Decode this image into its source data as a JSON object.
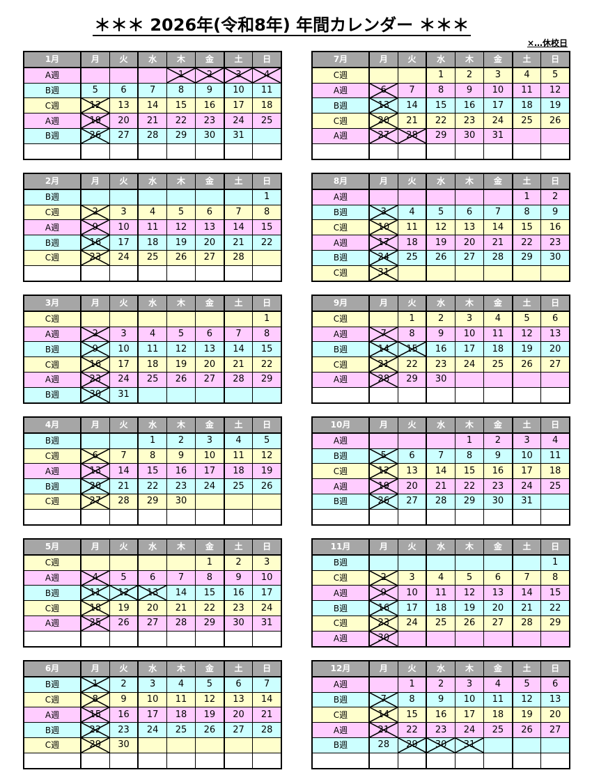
{
  "title": "＊＊＊ 2026年(令和8年) 年間カレンダー ＊＊＊",
  "legend_note": "×…休校日",
  "weekdays": [
    "月",
    "火",
    "水",
    "木",
    "金",
    "土",
    "日"
  ],
  "colors": {
    "A週": "#ffccff",
    "B週": "#ccffff",
    "C週": "#ffffcc",
    "header": "#a6a6a6"
  },
  "months": [
    {
      "label": "1月",
      "rows": [
        {
          "week": "A週",
          "days": [
            "",
            "",
            "",
            "1",
            "2",
            "3",
            "4"
          ]
        },
        {
          "week": "B週",
          "days": [
            "5",
            "6",
            "7",
            "8",
            "9",
            "10",
            "11"
          ]
        },
        {
          "week": "C週",
          "days": [
            "12",
            "13",
            "14",
            "15",
            "16",
            "17",
            "18"
          ]
        },
        {
          "week": "A週",
          "days": [
            "19",
            "20",
            "21",
            "22",
            "23",
            "24",
            "25"
          ]
        },
        {
          "week": "B週",
          "days": [
            "26",
            "27",
            "28",
            "29",
            "30",
            "31",
            ""
          ]
        },
        {
          "week": "",
          "days": [
            "",
            "",
            "",
            "",
            "",
            "",
            ""
          ]
        }
      ],
      "off": [
        "1",
        "2",
        "3",
        "4",
        "12",
        "19",
        "26"
      ]
    },
    {
      "label": "7月",
      "rows": [
        {
          "week": "C週",
          "days": [
            "",
            "",
            "1",
            "2",
            "3",
            "4",
            "5"
          ]
        },
        {
          "week": "A週",
          "days": [
            "6",
            "7",
            "8",
            "9",
            "10",
            "11",
            "12"
          ]
        },
        {
          "week": "B週",
          "days": [
            "13",
            "14",
            "15",
            "16",
            "17",
            "18",
            "19"
          ]
        },
        {
          "week": "C週",
          "days": [
            "20",
            "21",
            "22",
            "23",
            "24",
            "25",
            "26"
          ]
        },
        {
          "week": "A週",
          "days": [
            "27",
            "28",
            "29",
            "30",
            "31",
            "",
            ""
          ]
        },
        {
          "week": "",
          "days": [
            "",
            "",
            "",
            "",
            "",
            "",
            ""
          ]
        }
      ],
      "off": [
        "6",
        "13",
        "20",
        "27",
        "28"
      ]
    },
    {
      "label": "2月",
      "rows": [
        {
          "week": "B週",
          "days": [
            "",
            "",
            "",
            "",
            "",
            "",
            "1"
          ]
        },
        {
          "week": "C週",
          "days": [
            "2",
            "3",
            "4",
            "5",
            "6",
            "7",
            "8"
          ]
        },
        {
          "week": "A週",
          "days": [
            "9",
            "10",
            "11",
            "12",
            "13",
            "14",
            "15"
          ]
        },
        {
          "week": "B週",
          "days": [
            "16",
            "17",
            "18",
            "19",
            "20",
            "21",
            "22"
          ]
        },
        {
          "week": "C週",
          "days": [
            "23",
            "24",
            "25",
            "26",
            "27",
            "28",
            ""
          ]
        },
        {
          "week": "",
          "days": [
            "",
            "",
            "",
            "",
            "",
            "",
            ""
          ]
        }
      ],
      "off": [
        "2",
        "9",
        "16",
        "23"
      ]
    },
    {
      "label": "8月",
      "rows": [
        {
          "week": "A週",
          "days": [
            "",
            "",
            "",
            "",
            "",
            "1",
            "2"
          ]
        },
        {
          "week": "B週",
          "days": [
            "3",
            "4",
            "5",
            "6",
            "7",
            "8",
            "9"
          ]
        },
        {
          "week": "C週",
          "days": [
            "10",
            "11",
            "12",
            "13",
            "14",
            "15",
            "16"
          ]
        },
        {
          "week": "A週",
          "days": [
            "17",
            "18",
            "19",
            "20",
            "21",
            "22",
            "23"
          ]
        },
        {
          "week": "B週",
          "days": [
            "24",
            "25",
            "26",
            "27",
            "28",
            "29",
            "30"
          ]
        },
        {
          "week": "C週",
          "days": [
            "31",
            "",
            "",
            "",
            "",
            "",
            ""
          ]
        }
      ],
      "off": [
        "3",
        "10",
        "17",
        "24",
        "31"
      ]
    },
    {
      "label": "3月",
      "rows": [
        {
          "week": "C週",
          "days": [
            "",
            "",
            "",
            "",
            "",
            "",
            "1"
          ]
        },
        {
          "week": "A週",
          "days": [
            "2",
            "3",
            "4",
            "5",
            "6",
            "7",
            "8"
          ]
        },
        {
          "week": "B週",
          "days": [
            "9",
            "10",
            "11",
            "12",
            "13",
            "14",
            "15"
          ]
        },
        {
          "week": "C週",
          "days": [
            "16",
            "17",
            "18",
            "19",
            "20",
            "21",
            "22"
          ]
        },
        {
          "week": "A週",
          "days": [
            "23",
            "24",
            "25",
            "26",
            "27",
            "28",
            "29"
          ]
        },
        {
          "week": "B週",
          "days": [
            "30",
            "31",
            "",
            "",
            "",
            "",
            ""
          ]
        }
      ],
      "off": [
        "2",
        "9",
        "16",
        "23",
        "30"
      ]
    },
    {
      "label": "9月",
      "rows": [
        {
          "week": "C週",
          "days": [
            "",
            "1",
            "2",
            "3",
            "4",
            "5",
            "6"
          ]
        },
        {
          "week": "A週",
          "days": [
            "7",
            "8",
            "9",
            "10",
            "11",
            "12",
            "13"
          ]
        },
        {
          "week": "B週",
          "days": [
            "14",
            "15",
            "16",
            "17",
            "18",
            "19",
            "20"
          ]
        },
        {
          "week": "C週",
          "days": [
            "21",
            "22",
            "23",
            "24",
            "25",
            "26",
            "27"
          ]
        },
        {
          "week": "A週",
          "days": [
            "28",
            "29",
            "30",
            "",
            "",
            "",
            ""
          ]
        },
        {
          "week": "",
          "days": [
            "",
            "",
            "",
            "",
            "",
            "",
            ""
          ]
        }
      ],
      "off": [
        "7",
        "14",
        "15",
        "21",
        "28"
      ]
    },
    {
      "label": "4月",
      "rows": [
        {
          "week": "B週",
          "days": [
            "",
            "",
            "1",
            "2",
            "3",
            "4",
            "5"
          ]
        },
        {
          "week": "C週",
          "days": [
            "6",
            "7",
            "8",
            "9",
            "10",
            "11",
            "12"
          ]
        },
        {
          "week": "A週",
          "days": [
            "13",
            "14",
            "15",
            "16",
            "17",
            "18",
            "19"
          ]
        },
        {
          "week": "B週",
          "days": [
            "20",
            "21",
            "22",
            "23",
            "24",
            "25",
            "26"
          ]
        },
        {
          "week": "C週",
          "days": [
            "27",
            "28",
            "29",
            "30",
            "",
            "",
            ""
          ]
        },
        {
          "week": "",
          "days": [
            "",
            "",
            "",
            "",
            "",
            "",
            ""
          ]
        }
      ],
      "off": [
        "6",
        "13",
        "20",
        "27"
      ]
    },
    {
      "label": "10月",
      "rows": [
        {
          "week": "A週",
          "days": [
            "",
            "",
            "",
            "1",
            "2",
            "3",
            "4"
          ]
        },
        {
          "week": "B週",
          "days": [
            "5",
            "6",
            "7",
            "8",
            "9",
            "10",
            "11"
          ]
        },
        {
          "week": "C週",
          "days": [
            "12",
            "13",
            "14",
            "15",
            "16",
            "17",
            "18"
          ]
        },
        {
          "week": "A週",
          "days": [
            "19",
            "20",
            "21",
            "22",
            "23",
            "24",
            "25"
          ]
        },
        {
          "week": "B週",
          "days": [
            "26",
            "27",
            "28",
            "29",
            "30",
            "31",
            ""
          ]
        },
        {
          "week": "",
          "days": [
            "",
            "",
            "",
            "",
            "",
            "",
            ""
          ]
        }
      ],
      "off": [
        "5",
        "12",
        "19",
        "26"
      ]
    },
    {
      "label": "5月",
      "rows": [
        {
          "week": "C週",
          "days": [
            "",
            "",
            "",
            "",
            "1",
            "2",
            "3"
          ]
        },
        {
          "week": "A週",
          "days": [
            "4",
            "5",
            "6",
            "7",
            "8",
            "9",
            "10"
          ]
        },
        {
          "week": "B週",
          "days": [
            "11",
            "12",
            "13",
            "14",
            "15",
            "16",
            "17"
          ]
        },
        {
          "week": "C週",
          "days": [
            "18",
            "19",
            "20",
            "21",
            "22",
            "23",
            "24"
          ]
        },
        {
          "week": "A週",
          "days": [
            "25",
            "26",
            "27",
            "28",
            "29",
            "30",
            "31"
          ]
        },
        {
          "week": "",
          "days": [
            "",
            "",
            "",
            "",
            "",
            "",
            ""
          ]
        }
      ],
      "off": [
        "4",
        "11",
        "12",
        "13",
        "18",
        "25"
      ]
    },
    {
      "label": "11月",
      "rows": [
        {
          "week": "B週",
          "days": [
            "",
            "",
            "",
            "",
            "",
            "",
            "1"
          ]
        },
        {
          "week": "C週",
          "days": [
            "2",
            "3",
            "4",
            "5",
            "6",
            "7",
            "8"
          ]
        },
        {
          "week": "A週",
          "days": [
            "9",
            "10",
            "11",
            "12",
            "13",
            "14",
            "15"
          ]
        },
        {
          "week": "B週",
          "days": [
            "16",
            "17",
            "18",
            "19",
            "20",
            "21",
            "22"
          ]
        },
        {
          "week": "C週",
          "days": [
            "23",
            "24",
            "25",
            "26",
            "27",
            "28",
            "29"
          ]
        },
        {
          "week": "A週",
          "days": [
            "30",
            "",
            "",
            "",
            "",
            "",
            ""
          ]
        }
      ],
      "off": [
        "2",
        "9",
        "16",
        "23",
        "30"
      ]
    },
    {
      "label": "6月",
      "rows": [
        {
          "week": "B週",
          "days": [
            "1",
            "2",
            "3",
            "4",
            "5",
            "6",
            "7"
          ]
        },
        {
          "week": "C週",
          "days": [
            "8",
            "9",
            "10",
            "11",
            "12",
            "13",
            "14"
          ]
        },
        {
          "week": "A週",
          "days": [
            "15",
            "16",
            "17",
            "18",
            "19",
            "20",
            "21"
          ]
        },
        {
          "week": "B週",
          "days": [
            "22",
            "23",
            "24",
            "25",
            "26",
            "27",
            "28"
          ]
        },
        {
          "week": "C週",
          "days": [
            "29",
            "30",
            "",
            "",
            "",
            "",
            ""
          ]
        },
        {
          "week": "",
          "days": [
            "",
            "",
            "",
            "",
            "",
            "",
            ""
          ]
        }
      ],
      "off": [
        "1",
        "8",
        "15",
        "22",
        "29"
      ]
    },
    {
      "label": "12月",
      "rows": [
        {
          "week": "A週",
          "days": [
            "",
            "1",
            "2",
            "3",
            "4",
            "5",
            "6"
          ]
        },
        {
          "week": "B週",
          "days": [
            "7",
            "8",
            "9",
            "10",
            "11",
            "12",
            "13"
          ]
        },
        {
          "week": "C週",
          "days": [
            "14",
            "15",
            "16",
            "17",
            "18",
            "19",
            "20"
          ]
        },
        {
          "week": "A週",
          "days": [
            "21",
            "22",
            "23",
            "24",
            "25",
            "26",
            "27"
          ]
        },
        {
          "week": "B週",
          "days": [
            "28",
            "29",
            "30",
            "31",
            "",
            "",
            ""
          ]
        },
        {
          "week": "",
          "days": [
            "",
            "",
            "",
            "",
            "",
            "",
            ""
          ]
        }
      ],
      "off": [
        "7",
        "14",
        "21",
        "29",
        "30",
        "31"
      ]
    }
  ]
}
